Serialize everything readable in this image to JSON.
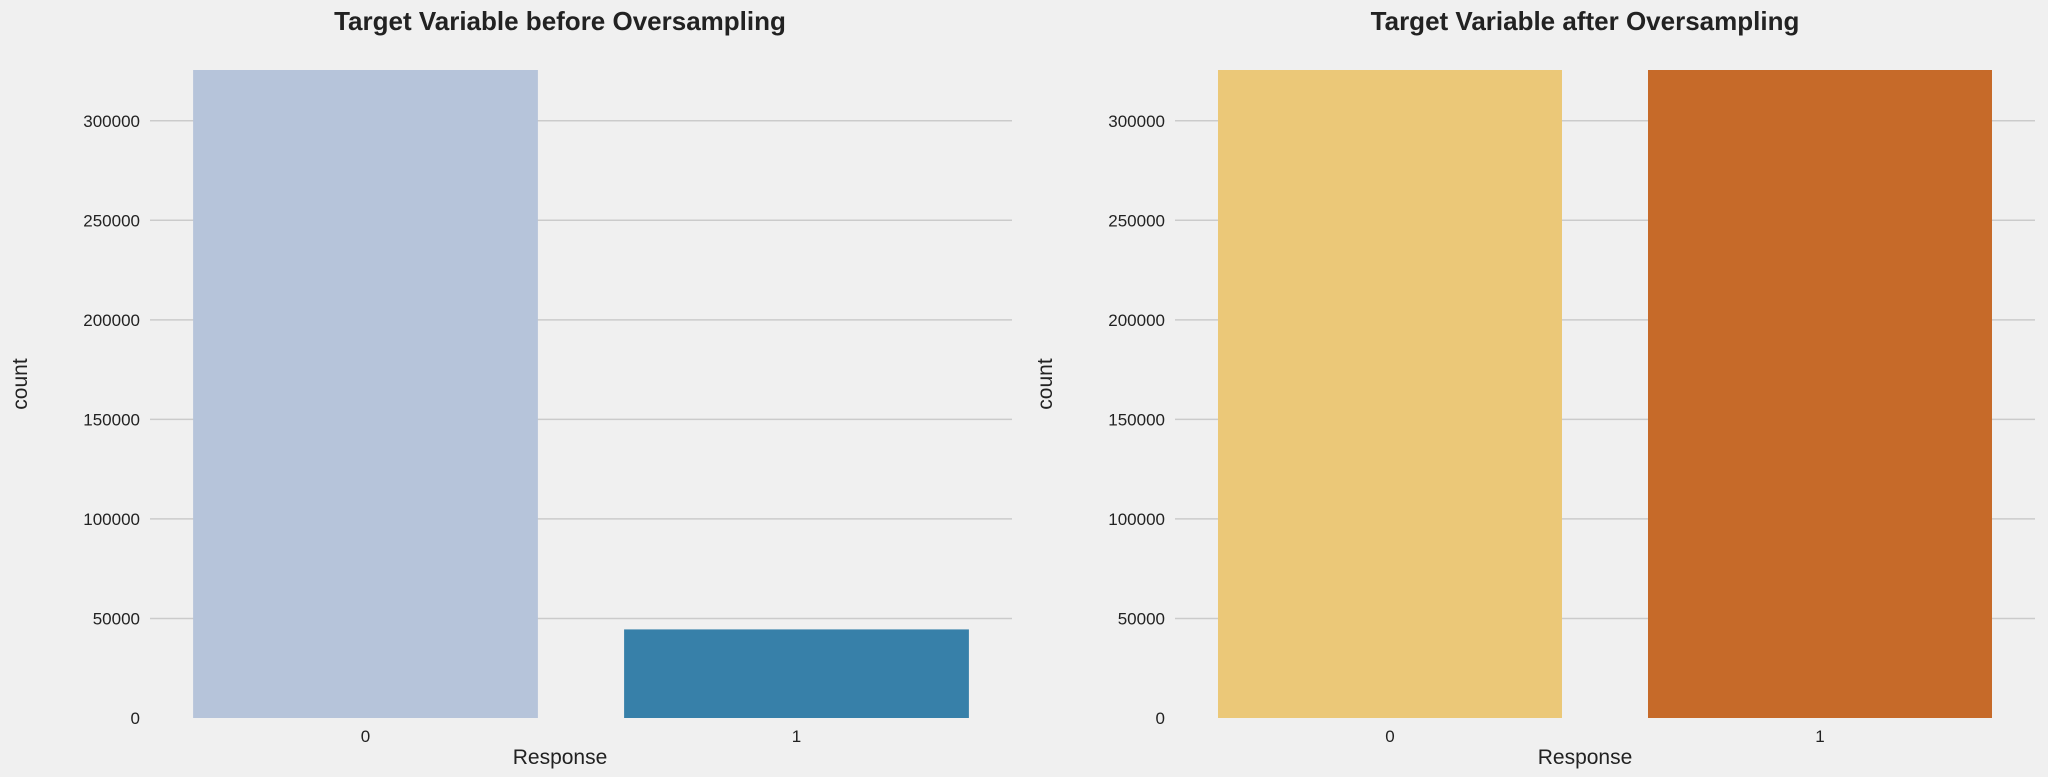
{
  "chart_data": [
    {
      "type": "bar",
      "title": "Target Variable before Oversampling",
      "xlabel": "Response",
      "ylabel": "count",
      "categories": [
        "0",
        "1"
      ],
      "values": [
        325500,
        44500
      ],
      "colors": [
        "#b6c4da",
        "#3780a9"
      ],
      "yticks": [
        0,
        50000,
        100000,
        150000,
        200000,
        250000,
        300000
      ],
      "ytick_labels": [
        "0",
        "50000",
        "100000",
        "150000",
        "200000",
        "250000",
        "300000"
      ],
      "ylim": [
        0,
        325500
      ],
      "grid": "horizontal",
      "background": "#f0f0f0"
    },
    {
      "type": "bar",
      "title": "Target Variable after Oversampling",
      "xlabel": "Response",
      "ylabel": "count",
      "categories": [
        "0",
        "1"
      ],
      "values": [
        325500,
        325500
      ],
      "colors": [
        "#ebc878",
        "#c66a29"
      ],
      "yticks": [
        0,
        50000,
        100000,
        150000,
        200000,
        250000,
        300000
      ],
      "ytick_labels": [
        "0",
        "50000",
        "100000",
        "150000",
        "200000",
        "250000",
        "300000"
      ],
      "ylim": [
        0,
        325500
      ],
      "grid": "horizontal",
      "background": "#f0f0f0"
    }
  ]
}
